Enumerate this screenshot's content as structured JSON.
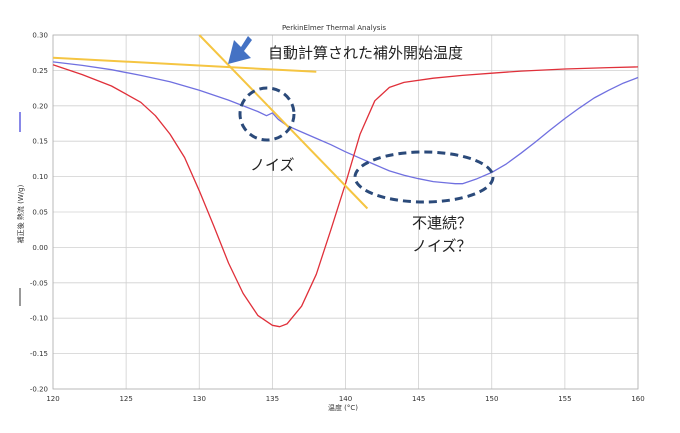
{
  "chart_data": {
    "type": "line",
    "title": "PerkinElmer Thermal Analysis",
    "xlabel": "温度 (°C)",
    "ylabel": "補正後 熱流 (W/g)",
    "xlim": [
      120,
      160
    ],
    "ylim": [
      -0.2,
      0.3
    ],
    "x_ticks": [
      120,
      125,
      130,
      135,
      140,
      145,
      150,
      155,
      160
    ],
    "y_ticks": [
      -0.2,
      -0.15,
      -0.1,
      -0.05,
      0.0,
      0.05,
      0.1,
      0.15,
      0.2,
      0.25,
      0.3
    ],
    "y_tick_labels": [
      "-0.20",
      "-0.15",
      "-0.10",
      "-0.05",
      "0.00",
      "0.05",
      "0.10",
      "0.15",
      "0.20",
      "0.25",
      "0.30"
    ],
    "grid": true,
    "series": [
      {
        "color": "#7070e0",
        "x": [
          120,
          122,
          124,
          126,
          128,
          130,
          132,
          134,
          134.6,
          135,
          135.4,
          136,
          137,
          138,
          139,
          140,
          141,
          142,
          143,
          144,
          145,
          146,
          147,
          147.5,
          148,
          149,
          150,
          151,
          152,
          153,
          154,
          155,
          156,
          157,
          158,
          159,
          160
        ],
        "y": [
          0.262,
          0.257,
          0.251,
          0.243,
          0.234,
          0.222,
          0.208,
          0.192,
          0.186,
          0.19,
          0.181,
          0.172,
          0.163,
          0.154,
          0.145,
          0.135,
          0.126,
          0.117,
          0.108,
          0.102,
          0.097,
          0.093,
          0.091,
          0.09,
          0.09,
          0.097,
          0.106,
          0.118,
          0.133,
          0.149,
          0.166,
          0.182,
          0.197,
          0.211,
          0.222,
          0.232,
          0.24
        ]
      },
      {
        "color": "#e0303a",
        "x": [
          120,
          122,
          124,
          126,
          127,
          128,
          129,
          130,
          131,
          132,
          133,
          134,
          135,
          135.5,
          136,
          137,
          138,
          139,
          140,
          141,
          142,
          143,
          144,
          146,
          148,
          150,
          152,
          155,
          158,
          160
        ],
        "y": [
          0.258,
          0.244,
          0.228,
          0.205,
          0.186,
          0.16,
          0.127,
          0.08,
          0.03,
          -0.022,
          -0.065,
          -0.096,
          -0.11,
          -0.112,
          -0.108,
          -0.083,
          -0.038,
          0.025,
          0.09,
          0.16,
          0.207,
          0.226,
          0.233,
          0.239,
          0.243,
          0.246,
          0.249,
          0.252,
          0.254,
          0.255
        ]
      },
      {
        "color": "#f5c542",
        "x": [
          120,
          138
        ],
        "y": [
          0.268,
          0.248
        ]
      },
      {
        "color": "#f5c542",
        "x": [
          130,
          141.5
        ],
        "y": [
          0.3,
          0.055
        ]
      }
    ],
    "annotations": {
      "auto_onset": "自動計算された補外開始温度",
      "noise": "ノイズ",
      "discontinuity_line1": "不連続？",
      "discontinuity_line2": "ノイズ？"
    }
  }
}
